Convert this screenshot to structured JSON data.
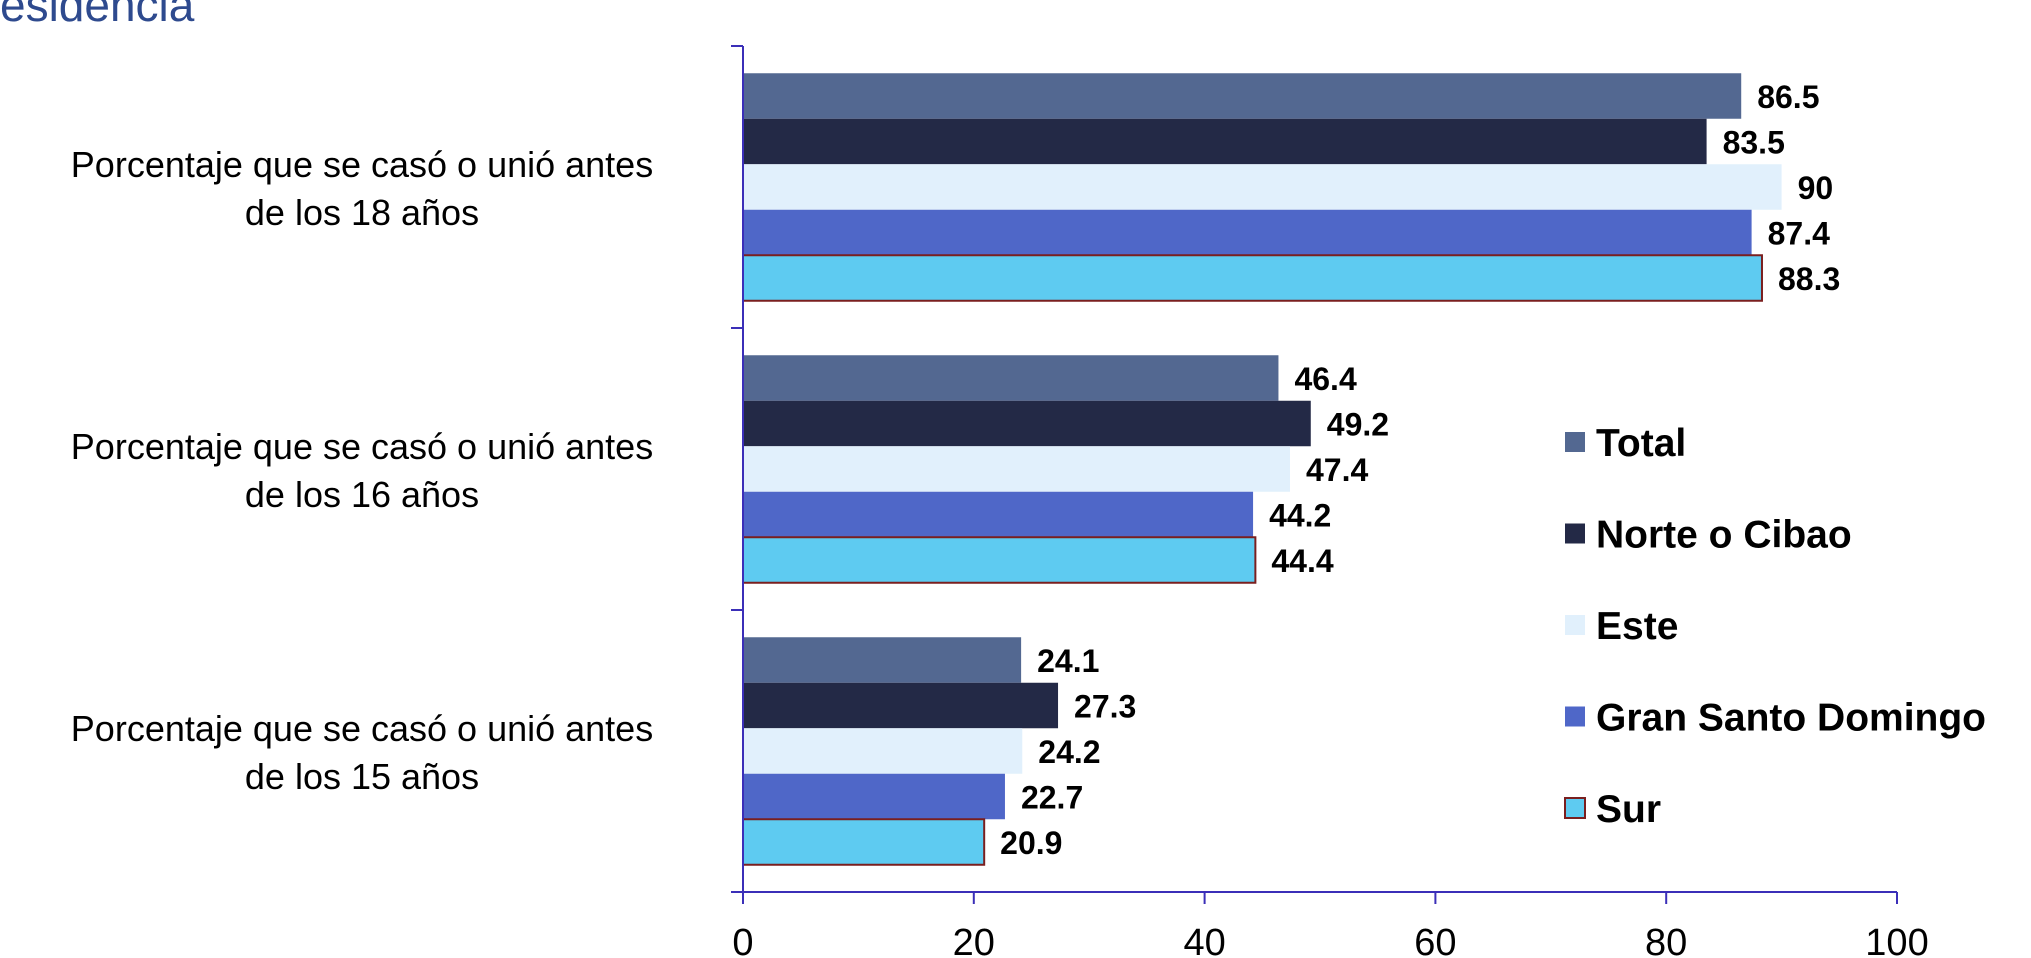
{
  "title": "esidencia",
  "chart_data": {
    "type": "bar",
    "orientation": "horizontal",
    "title": "esidencia",
    "xlabel": "",
    "ylabel": "",
    "xlim": [
      0,
      100
    ],
    "x_ticks": [
      "0",
      "20",
      "40",
      "60",
      "80",
      "100"
    ],
    "grid": false,
    "legend_position": "right",
    "categories": [
      [
        "Porcentaje que se casó o unió antes",
        "de los 18 años"
      ],
      [
        "Porcentaje que se casó o unió antes",
        "de los 16 años"
      ],
      [
        "Porcentaje que se casó o unió antes",
        "de los 15 años"
      ]
    ],
    "series": [
      {
        "name": "Total",
        "color": "#536891",
        "values": [
          86.5,
          46.4,
          24.1
        ],
        "labels": [
          "86.5",
          "46.4",
          "24.1"
        ]
      },
      {
        "name": "Norte o Cibao",
        "color": "#232946",
        "values": [
          83.5,
          49.2,
          27.3
        ],
        "labels": [
          "83.5",
          "49.2",
          "27.3"
        ]
      },
      {
        "name": "Este",
        "color": "#e1f0fc",
        "values": [
          90,
          47.4,
          24.2
        ],
        "labels": [
          "90",
          "47.4",
          "24.2"
        ]
      },
      {
        "name": "Gran Santo Domingo",
        "color": "#4f67c8",
        "values": [
          87.4,
          44.2,
          22.7
        ],
        "labels": [
          "87.4",
          "44.2",
          "22.7"
        ]
      },
      {
        "name": "Sur",
        "color": "#5ecbf1",
        "stroke": "#7a1f1f",
        "values": [
          88.3,
          44.4,
          20.9
        ],
        "labels": [
          "88.3",
          "44.4",
          "20.9"
        ]
      }
    ],
    "axis_color": "#3b2fb8"
  }
}
